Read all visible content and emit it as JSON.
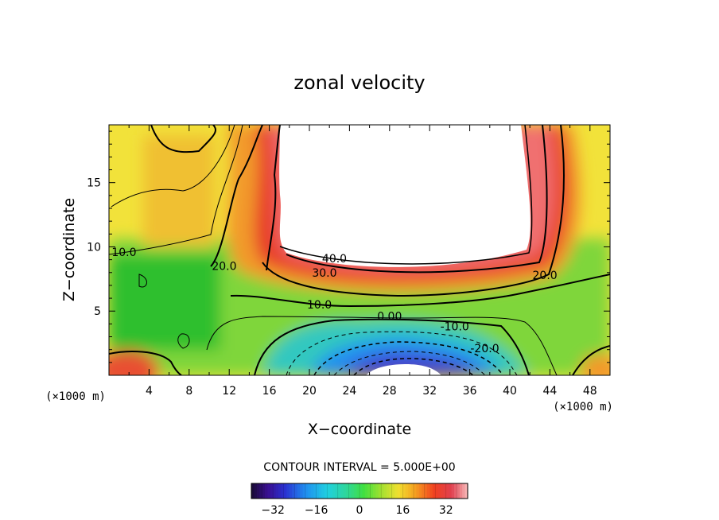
{
  "chart_data": {
    "type": "heatmap",
    "title": "zonal velocity",
    "xlabel": "X−coordinate",
    "ylabel": "Z−coordinate",
    "x_unit_label": "(×1000 m)",
    "z_unit_label": "(×1000 m)",
    "xlim": [
      0,
      50
    ],
    "ylim": [
      0,
      19.5
    ],
    "x_ticks": [
      4,
      8,
      12,
      16,
      20,
      24,
      28,
      32,
      36,
      40,
      44,
      48
    ],
    "x_tick_labels": [
      "4",
      "8",
      "12",
      "16",
      "20",
      "24",
      "28",
      "32",
      "36",
      "40",
      "44",
      "48"
    ],
    "y_ticks": [
      5,
      10,
      15
    ],
    "y_tick_labels": [
      "5",
      "10",
      "15"
    ],
    "contour_interval_text": "CONTOUR INTERVAL = 5.000E+00",
    "contour_interval": 5.0,
    "contour_labels": [
      {
        "text": "10.0",
        "x": 1.5,
        "z": 9.6
      },
      {
        "text": "20.0",
        "x": 11.5,
        "z": 8.5
      },
      {
        "text": "40.0",
        "x": 22.5,
        "z": 9.1
      },
      {
        "text": "30.0",
        "x": 21.5,
        "z": 8.0
      },
      {
        "text": "20.0",
        "x": 43.5,
        "z": 7.8
      },
      {
        "text": "10.0",
        "x": 21.0,
        "z": 5.5
      },
      {
        "text": "0.00",
        "x": 28.0,
        "z": 4.6
      },
      {
        "text": "-10.0",
        "x": 34.5,
        "z": 3.8
      },
      {
        "text": "-20.0",
        "x": 37.5,
        "z": 2.1
      }
    ],
    "max_region": {
      "x_range": [
        18.5,
        42
      ],
      "z_range": [
        8.5,
        19.5
      ],
      "note": "above color scale"
    },
    "colorbar": {
      "min": -40,
      "max": 40,
      "ticks": [
        -32,
        -16,
        0,
        16,
        32
      ],
      "tick_labels": [
        "−32",
        "−16",
        "0",
        "16",
        "32"
      ]
    }
  }
}
